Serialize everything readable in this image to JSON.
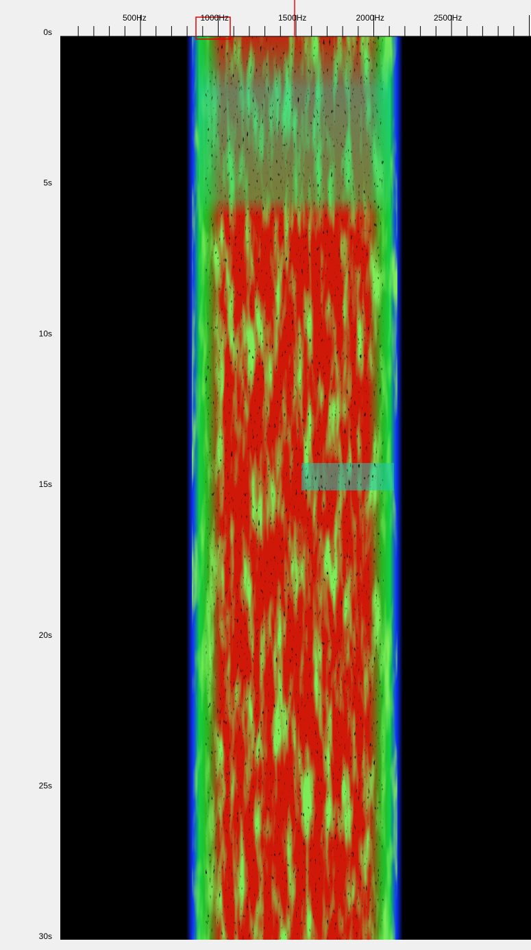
{
  "x_axis": {
    "labels": [
      "500Hz",
      "1000Hz",
      "1500Hz",
      "2000Hz",
      "2500Hz"
    ]
  },
  "y_axis": {
    "labels": [
      "0s",
      "5s",
      "10s",
      "15s",
      "20s",
      "25s",
      "30s"
    ]
  }
}
